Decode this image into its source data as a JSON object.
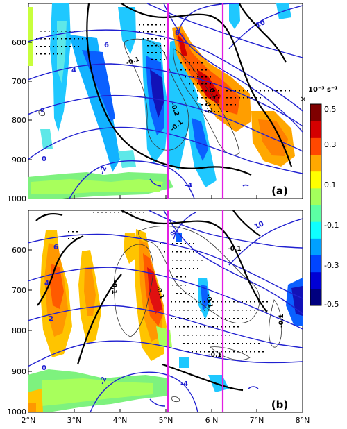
{
  "chart_data": [
    {
      "type": "heatmap",
      "panel_label": "(a)",
      "x_ticks": [
        "2°N",
        "3°N",
        "4°N",
        "5°N",
        "6 N",
        "7°N",
        "8°N"
      ],
      "y_ticks": [
        "600",
        "700",
        "800",
        "900",
        "1000"
      ],
      "xlim": [
        2,
        8
      ],
      "ylim": [
        1000,
        520
      ],
      "y_reversed": true,
      "vertical_lines_x": [
        5.05,
        6.2
      ],
      "blue_contour_labels": [
        {
          "text": "6",
          "x": 3.5,
          "y": 597
        },
        {
          "text": "4",
          "x": 3.05,
          "y": 695
        },
        {
          "text": "2",
          "x": 2.72,
          "y": 778
        },
        {
          "text": "0",
          "x": 2.62,
          "y": 860
        },
        {
          "text": "-2",
          "x": 3.55,
          "y": 955
        },
        {
          "text": "-4",
          "x": 5.45,
          "y": 975
        },
        {
          "text": "8",
          "x": 5.2,
          "y": 565
        },
        {
          "text": "10",
          "x": 7.0,
          "y": 555
        }
      ],
      "black_contour_labels": [
        {
          "text": "-0.1",
          "x": 4.63,
          "y": 655
        },
        {
          "text": "-0.1",
          "x": 5.82,
          "y": 735
        },
        {
          "text": "-0.2",
          "x": 5.12,
          "y": 790
        },
        {
          "text": "-0.2",
          "x": 5.98,
          "y": 765
        },
        {
          "text": "-0.1",
          "x": 5.12,
          "y": 823
        }
      ]
    },
    {
      "type": "heatmap",
      "panel_label": "(b)",
      "x_ticks": [
        "2°N",
        "3°N",
        "4°N",
        "5°N",
        "6 N",
        "7°N",
        "8°N"
      ],
      "y_ticks": [
        "600",
        "700",
        "800",
        "900",
        "1000"
      ],
      "xlim": [
        2,
        8
      ],
      "ylim": [
        1000,
        520
      ],
      "y_reversed": true,
      "vertical_lines_x": [
        5.05,
        6.2
      ],
      "blue_contour_labels": [
        {
          "text": "6",
          "x": 2.95,
          "y": 578
        },
        {
          "text": "4",
          "x": 2.65,
          "y": 684
        },
        {
          "text": "2",
          "x": 2.65,
          "y": 779
        },
        {
          "text": "0",
          "x": 2.72,
          "y": 860
        },
        {
          "text": "-2",
          "x": 3.55,
          "y": 938
        },
        {
          "text": "-4",
          "x": 5.45,
          "y": 955
        },
        {
          "text": "8",
          "x": 5.22,
          "y": 545
        },
        {
          "text": "10",
          "x": 7.0,
          "y": 535
        }
      ],
      "black_contour_labels": [
        {
          "text": "-0.1",
          "x": 6.2,
          "y": 585
        },
        {
          "text": "-0.1",
          "x": 4.35,
          "y": 715
        },
        {
          "text": "-0.1",
          "x": 4.88,
          "y": 726
        },
        {
          "text": "-0.1",
          "x": 6.0,
          "y": 752
        },
        {
          "text": "-0.1",
          "x": 7.5,
          "y": 795
        },
        {
          "text": "-0.1",
          "x": 5.9,
          "y": 860
        }
      ]
    }
  ],
  "colorbar": {
    "unit_label": "10⁻⁵ s⁻¹",
    "ticks": [
      "0.5",
      "0.3",
      "0.1",
      "-0.1",
      "-0.3",
      "-0.5"
    ],
    "range": [
      -0.5,
      0.5
    ],
    "colors": [
      "#00007f",
      "#0000d4",
      "#0045ff",
      "#00a0ff",
      "#0fffff",
      "#5cffa3",
      "#a3ff5c",
      "#ffff00",
      "#ffa800",
      "#ff4800",
      "#d40000",
      "#7f0000"
    ]
  },
  "close_glyph": "×"
}
